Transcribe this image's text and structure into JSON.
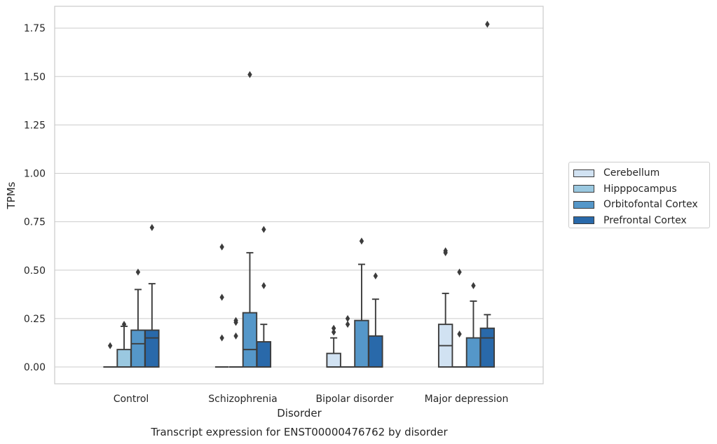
{
  "chart_data": {
    "type": "box",
    "title": "",
    "caption": "Transcript expression for ENST00000476762 by disorder",
    "xlabel": "Disorder",
    "ylabel": "TPMs",
    "ylim": [
      -0.09,
      1.86
    ],
    "yticks": [
      "0.00",
      "0.25",
      "0.50",
      "0.75",
      "1.00",
      "1.25",
      "1.50",
      "1.75"
    ],
    "grid": true,
    "legend_position": "right",
    "categories": [
      "Control",
      "Schizophrenia",
      "Bipolar disorder",
      "Major depression"
    ],
    "series": [
      {
        "name": "Cerebellum",
        "color": "#d1e2f2",
        "boxes": [
          {
            "q1": 0,
            "median": 0,
            "q3": 0,
            "whisker_low": 0,
            "whisker_high": 0,
            "outliers": [
              0.11
            ]
          },
          {
            "q1": 0,
            "median": 0,
            "q3": 0,
            "whisker_low": 0,
            "whisker_high": 0,
            "outliers": [
              0.15,
              0.36,
              0.62
            ]
          },
          {
            "q1": 0,
            "median": 0,
            "q3": 0.07,
            "whisker_low": 0,
            "whisker_high": 0.15,
            "outliers": [
              0.18,
              0.2
            ]
          },
          {
            "q1": 0,
            "median": 0.11,
            "q3": 0.22,
            "whisker_low": 0,
            "whisker_high": 0.38,
            "outliers": [
              0.59,
              0.6
            ]
          }
        ]
      },
      {
        "name": "Hipppocampus",
        "color": "#9ac8e0",
        "boxes": [
          {
            "q1": 0,
            "median": 0,
            "q3": 0.09,
            "whisker_low": 0,
            "whisker_high": 0.21,
            "outliers": [
              0.22
            ]
          },
          {
            "q1": 0,
            "median": 0,
            "q3": 0,
            "whisker_low": 0,
            "whisker_high": 0,
            "outliers": [
              0.16,
              0.23,
              0.24
            ]
          },
          {
            "q1": 0,
            "median": 0,
            "q3": 0,
            "whisker_low": 0,
            "whisker_high": 0,
            "outliers": [
              0.22,
              0.25
            ]
          },
          {
            "q1": 0,
            "median": 0,
            "q3": 0,
            "whisker_low": 0,
            "whisker_high": 0,
            "outliers": [
              0.17,
              0.49
            ]
          }
        ]
      },
      {
        "name": "Orbitofontal Cortex",
        "color": "#5597c9",
        "boxes": [
          {
            "q1": 0,
            "median": 0.12,
            "q3": 0.19,
            "whisker_low": 0,
            "whisker_high": 0.4,
            "outliers": [
              0.49
            ]
          },
          {
            "q1": 0,
            "median": 0.09,
            "q3": 0.28,
            "whisker_low": 0,
            "whisker_high": 0.59,
            "outliers": [
              1.51
            ]
          },
          {
            "q1": 0,
            "median": 0,
            "q3": 0.24,
            "whisker_low": 0,
            "whisker_high": 0.53,
            "outliers": [
              0.65
            ]
          },
          {
            "q1": 0,
            "median": 0,
            "q3": 0.15,
            "whisker_low": 0,
            "whisker_high": 0.34,
            "outliers": [
              0.42
            ]
          }
        ]
      },
      {
        "name": "Prefrontal Cortex",
        "color": "#2969aa",
        "boxes": [
          {
            "q1": 0,
            "median": 0.15,
            "q3": 0.19,
            "whisker_low": 0,
            "whisker_high": 0.43,
            "outliers": [
              0.72
            ]
          },
          {
            "q1": 0,
            "median": 0,
            "q3": 0.13,
            "whisker_low": 0,
            "whisker_high": 0.22,
            "outliers": [
              0.42,
              0.71
            ]
          },
          {
            "q1": 0,
            "median": 0,
            "q3": 0.16,
            "whisker_low": 0,
            "whisker_high": 0.35,
            "outliers": [
              0.47
            ]
          },
          {
            "q1": 0,
            "median": 0.15,
            "q3": 0.2,
            "whisker_low": 0,
            "whisker_high": 0.27,
            "outliers": [
              1.77
            ]
          }
        ]
      }
    ]
  }
}
